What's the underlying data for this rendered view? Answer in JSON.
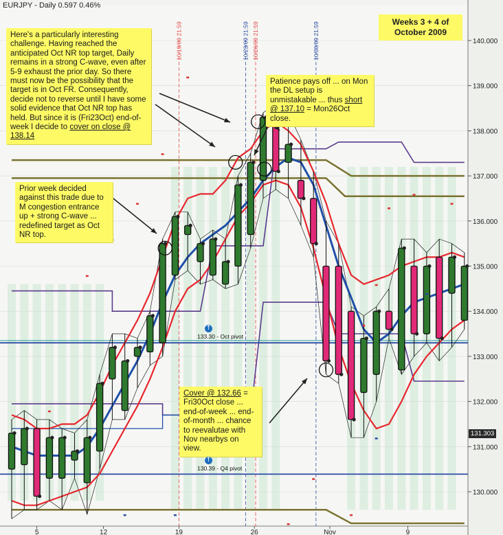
{
  "header": {
    "symbol": "EURJPY",
    "sep": " - ",
    "period": "Daily",
    "last": "0.597",
    "change": "0.46%"
  },
  "weeks_box": {
    "line1": "Weeks 3 + 4 of",
    "line2": "October 2009"
  },
  "notes": {
    "challenge": {
      "main": "Here's a particularly interesting challenge.  Having reached the anticipated Oct NR top target, Daily remains in a strong C-wave, even after 5-9 exhaust the prior day.  So there must now be the possibility that the target is in Oct FR.  Consequently, decide not to reverse until I have some solid evidence that Oct NR top has held.  But since it is (Fri23Oct) end-of-week I decide to ",
      "emph": "cover on close @ 138.14"
    },
    "patience": {
      "pre": "Patience pays off ... on Mon the DL setup is unmistakable ... thus ",
      "emph": "short @ 137.10",
      "post": " = Mon26Oct close."
    },
    "prior": {
      "text": "Prior week decided against this trade due to M congestion entrance up + strong C-wave ... redefined target as Oct NR top."
    },
    "cover": {
      "emph": "Cover @ 132.66",
      "post": " = Fri30Oct close ... end-of-week ... end-of-month ... chance to reevalutae with Nov nearbys on view."
    }
  },
  "pivots": {
    "oct": "133.30 - Oct pivot",
    "q4": "130.39 - Q4 pivot"
  },
  "last_price": "131.303",
  "vline_labels": [
    "10/19/09 21:59",
    "10/23/09 21:59",
    "10/26/09 21:59",
    "10/30/09 21:59"
  ],
  "colors": {
    "bull": "#2f7a2f",
    "bear": "#e02a77",
    "redband": "#e8262e",
    "blueband": "#1f4fa8",
    "olive": "#7a7230",
    "purple": "#5a3b8c",
    "pivot": "#2b4aa3"
  },
  "chart_data": {
    "type": "candlestick",
    "symbol": "EURJPY",
    "period": "Daily",
    "x_ticks": [
      "5",
      "12",
      "19",
      "26",
      "Nov",
      "9"
    ],
    "y_ticks": [
      "130.000",
      "131.000",
      "132.000",
      "133.000",
      "134.000",
      "135.000",
      "136.000",
      "137.000",
      "138.000",
      "139.000",
      "140.000"
    ],
    "ylim": [
      129.2,
      140.7
    ],
    "pivot_lines": [
      {
        "label": "133.30 - Oct pivot",
        "value": 133.3
      },
      {
        "label": "130.39 - Q4 pivot",
        "value": 130.39
      }
    ],
    "candles": [
      {
        "o": 130.5,
        "h": 131.6,
        "l": 129.4,
        "c": 131.3
      },
      {
        "o": 130.6,
        "h": 131.8,
        "l": 129.6,
        "c": 131.4
      },
      {
        "o": 131.4,
        "h": 131.6,
        "l": 129.6,
        "c": 129.9
      },
      {
        "o": 130.3,
        "h": 131.6,
        "l": 129.8,
        "c": 131.2
      },
      {
        "o": 130.3,
        "h": 131.4,
        "l": 129.6,
        "c": 131.2
      },
      {
        "o": 130.7,
        "h": 131.3,
        "l": 130.3,
        "c": 130.9
      },
      {
        "o": 130.2,
        "h": 131.6,
        "l": 129.5,
        "c": 131.2
      },
      {
        "o": 130.9,
        "h": 132.6,
        "l": 130.5,
        "c": 132.4
      },
      {
        "o": 132.5,
        "h": 133.5,
        "l": 131.6,
        "c": 133.2
      },
      {
        "o": 131.8,
        "h": 133.5,
        "l": 131.6,
        "c": 132.9
      },
      {
        "o": 133.0,
        "h": 133.4,
        "l": 132.3,
        "c": 133.2
      },
      {
        "o": 133.1,
        "h": 134.0,
        "l": 132.8,
        "c": 133.9
      },
      {
        "o": 133.3,
        "h": 135.6,
        "l": 133.0,
        "c": 135.5
      },
      {
        "o": 134.8,
        "h": 136.2,
        "l": 134.7,
        "c": 136.1
      },
      {
        "o": 135.7,
        "h": 136.2,
        "l": 134.9,
        "c": 135.9
      },
      {
        "o": 135.1,
        "h": 135.6,
        "l": 134.6,
        "c": 135.5
      },
      {
        "o": 134.8,
        "h": 135.8,
        "l": 134.7,
        "c": 135.6
      },
      {
        "o": 134.6,
        "h": 135.6,
        "l": 134.5,
        "c": 135.1
      },
      {
        "o": 135.0,
        "h": 137.0,
        "l": 134.6,
        "c": 136.8
      },
      {
        "o": 135.7,
        "h": 137.5,
        "l": 135.4,
        "c": 137.3
      },
      {
        "o": 136.9,
        "h": 138.4,
        "l": 136.5,
        "c": 138.3
      },
      {
        "o": 138.4,
        "h": 138.6,
        "l": 136.7,
        "c": 137.1
      },
      {
        "o": 137.3,
        "h": 138.4,
        "l": 136.5,
        "c": 137.7
      },
      {
        "o": 136.9,
        "h": 137.8,
        "l": 135.9,
        "c": 136.5
      },
      {
        "o": 136.5,
        "h": 137.1,
        "l": 135.2,
        "c": 135.5
      },
      {
        "o": 135.0,
        "h": 136.0,
        "l": 132.6,
        "c": 132.9
      },
      {
        "o": 135.0,
        "h": 135.5,
        "l": 132.4,
        "c": 132.6
      },
      {
        "o": 134.0,
        "h": 134.1,
        "l": 131.2,
        "c": 131.6
      },
      {
        "o": 132.2,
        "h": 133.9,
        "l": 131.2,
        "c": 133.4
      },
      {
        "o": 132.6,
        "h": 134.1,
        "l": 132.0,
        "c": 134.0
      },
      {
        "o": 134.0,
        "h": 134.5,
        "l": 133.4,
        "c": 133.6
      },
      {
        "o": 132.7,
        "h": 135.6,
        "l": 132.6,
        "c": 135.4
      },
      {
        "o": 135.0,
        "h": 135.6,
        "l": 133.0,
        "c": 133.5
      },
      {
        "o": 133.5,
        "h": 135.3,
        "l": 133.3,
        "c": 135.0
      },
      {
        "o": 135.2,
        "h": 135.6,
        "l": 132.9,
        "c": 133.4
      },
      {
        "o": 134.4,
        "h": 135.5,
        "l": 133.2,
        "c": 135.2
      },
      {
        "o": 133.8,
        "h": 135.3,
        "l": 133.6,
        "c": 135.0
      }
    ],
    "ma_red_upper": [
      131.7,
      131.6,
      131.4,
      131.4,
      131.5,
      131.5,
      131.7,
      132.2,
      132.8,
      133.3,
      133.8,
      134.4,
      135.2,
      136.0,
      136.5,
      136.6,
      136.6,
      136.9,
      137.4,
      137.6,
      138.0,
      138.2,
      138.0,
      137.7,
      137.1,
      136.4,
      135.5,
      134.8,
      134.6,
      134.7,
      134.8,
      135.0,
      135.1,
      135.2,
      135.2,
      135.3,
      135.2
    ],
    "ma_red_lower": [
      129.8,
      129.7,
      129.7,
      129.8,
      129.9,
      130.0,
      130.1,
      130.4,
      130.9,
      131.4,
      131.9,
      132.5,
      133.2,
      134.0,
      134.5,
      134.7,
      135.1,
      135.6,
      136.1,
      136.4,
      136.8,
      136.9,
      136.8,
      136.3,
      135.4,
      134.3,
      133.2,
      132.4,
      131.8,
      131.4,
      131.5,
      132.0,
      132.6,
      133.0,
      133.3,
      133.6,
      133.8
    ],
    "ma_blue": [
      131.0,
      130.9,
      130.8,
      130.8,
      130.8,
      130.8,
      131.0,
      131.4,
      131.9,
      132.4,
      132.9,
      133.5,
      134.2,
      134.8,
      135.2,
      135.5,
      135.7,
      135.9,
      136.2,
      136.5,
      136.9,
      137.2,
      137.4,
      137.3,
      136.8,
      135.9,
      135.0,
      134.3,
      133.6,
      133.3,
      133.5,
      133.9,
      134.2,
      134.3,
      134.4,
      134.5,
      134.6
    ],
    "band_olive_upper": [
      [
        0,
        137.35
      ],
      [
        25,
        137.35
      ],
      [
        27,
        137.0
      ],
      [
        32,
        137.0
      ],
      [
        36,
        137.0
      ]
    ],
    "band_olive_lower": [
      [
        0,
        129.6
      ],
      [
        25,
        129.6
      ],
      [
        27,
        129.3
      ],
      [
        36,
        129.3
      ]
    ]
  }
}
